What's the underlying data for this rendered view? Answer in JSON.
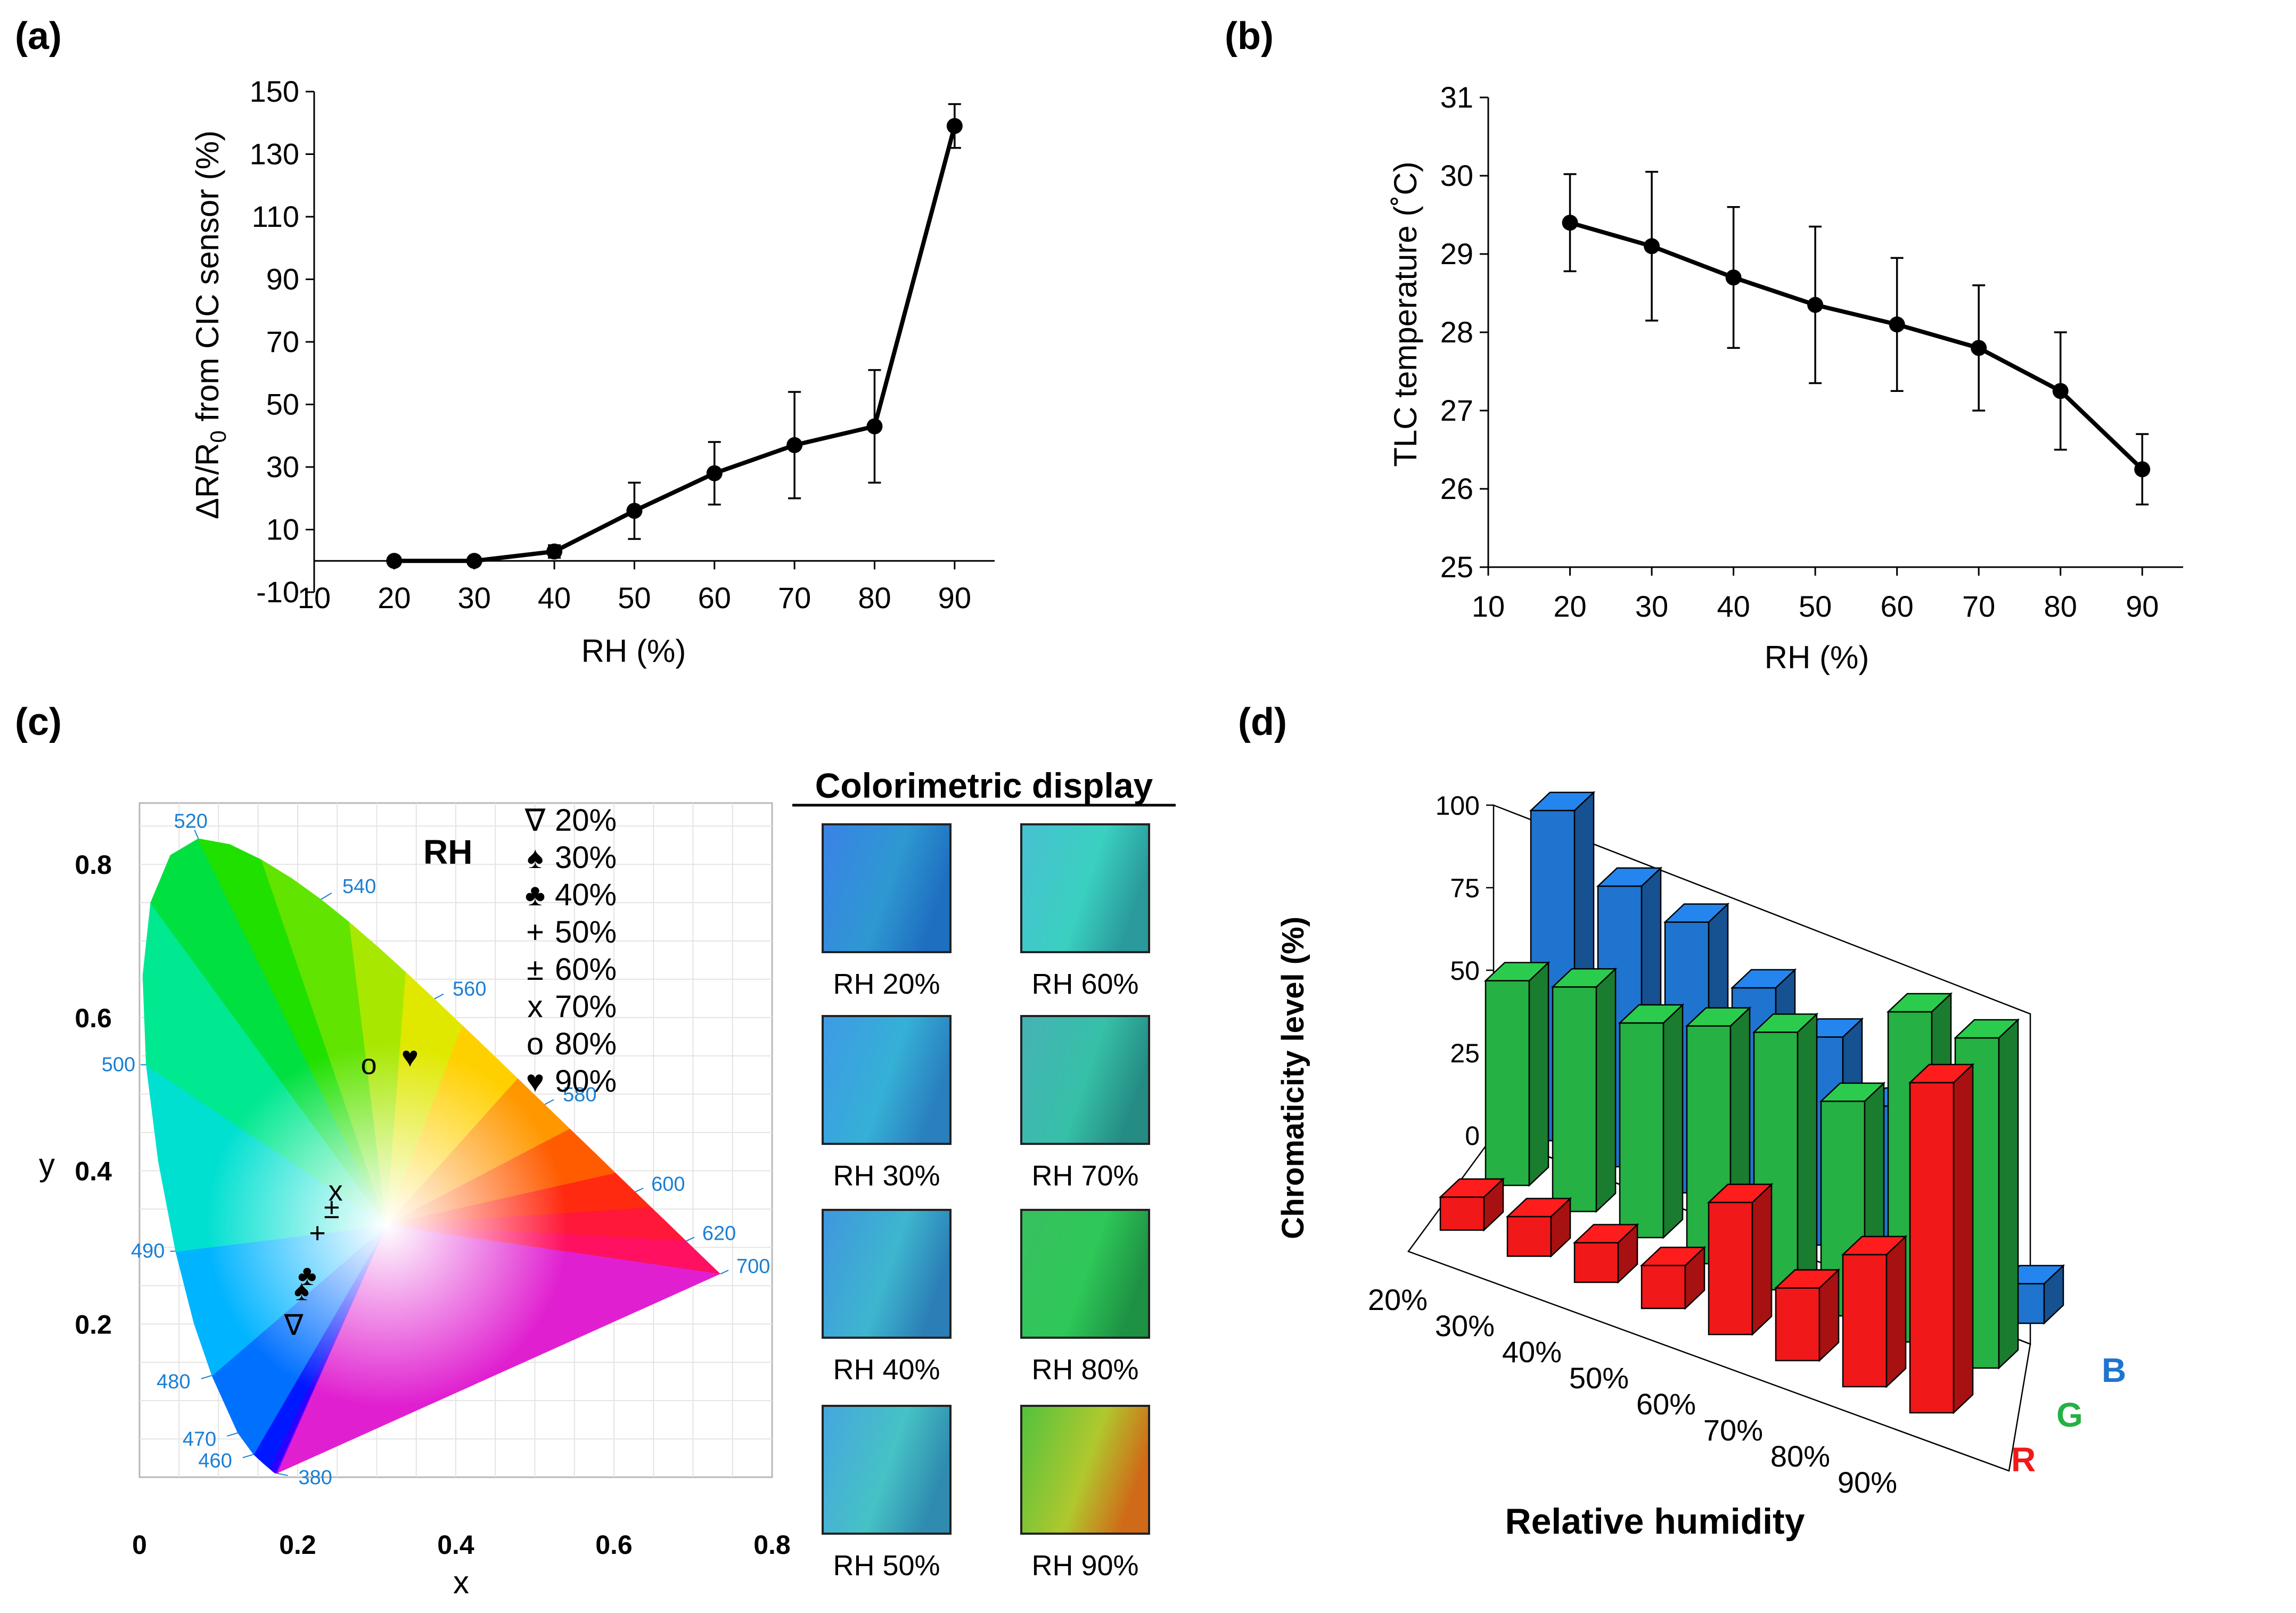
{
  "chart_data": [
    {
      "panel": "(a)",
      "type": "line",
      "xlabel": "RH (%)",
      "ylabel_parts": [
        "ΔR/R",
        "0",
        " from CIC sensor (%)"
      ],
      "xlim": [
        10,
        95
      ],
      "ylim": [
        -10,
        150
      ],
      "xticks": [
        10,
        20,
        30,
        40,
        50,
        60,
        70,
        80,
        90
      ],
      "yticks": [
        -10,
        10,
        30,
        50,
        70,
        90,
        110,
        130,
        150
      ],
      "x": [
        20,
        30,
        40,
        50,
        60,
        70,
        80,
        90
      ],
      "y": [
        0,
        0,
        3,
        16,
        28,
        37,
        43,
        139
      ],
      "err": [
        0,
        0,
        2,
        9,
        10,
        17,
        18,
        7
      ]
    },
    {
      "panel": "(b)",
      "type": "line",
      "xlabel": "RH (%)",
      "ylabel": "TLC temperature (˚C)",
      "xlim": [
        10,
        95
      ],
      "ylim": [
        25,
        31
      ],
      "xticks": [
        10,
        20,
        30,
        40,
        50,
        60,
        70,
        80,
        90
      ],
      "yticks": [
        25,
        26,
        27,
        28,
        29,
        30,
        31
      ],
      "x": [
        20,
        30,
        40,
        50,
        60,
        70,
        80,
        90
      ],
      "y": [
        29.4,
        29.1,
        28.7,
        28.35,
        28.1,
        27.8,
        27.25,
        26.25
      ],
      "err": [
        0.62,
        0.95,
        0.9,
        1.0,
        0.85,
        0.8,
        0.75,
        0.45
      ]
    },
    {
      "panel": "(c)",
      "type": "scatter",
      "title": "RH",
      "xlabel": "x",
      "ylabel": "y",
      "xlim": [
        0,
        0.8
      ],
      "ylim": [
        0,
        0.88
      ],
      "xticks": [
        0,
        0.2,
        0.4,
        0.6,
        0.8
      ],
      "xtick_labels": [
        "0",
        "0.2",
        "0.4",
        "0.6",
        "0.8"
      ],
      "yticks": [
        0.2,
        0.4,
        0.6,
        0.8
      ],
      "ytick_labels": [
        "0.2",
        "0.4",
        "0.6",
        "0.8"
      ],
      "wavelength_labels": [
        {
          "nm": "380",
          "x": 0.1741,
          "y": 0.005
        },
        {
          "nm": "460",
          "x": 0.144,
          "y": 0.0297
        },
        {
          "nm": "470",
          "x": 0.1241,
          "y": 0.0578
        },
        {
          "nm": "480",
          "x": 0.0913,
          "y": 0.1327
        },
        {
          "nm": "490",
          "x": 0.0454,
          "y": 0.295
        },
        {
          "nm": "500",
          "x": 0.0082,
          "y": 0.5384
        },
        {
          "nm": "520",
          "x": 0.0743,
          "y": 0.8338
        },
        {
          "nm": "540",
          "x": 0.2296,
          "y": 0.7543
        },
        {
          "nm": "560",
          "x": 0.3731,
          "y": 0.6245
        },
        {
          "nm": "580",
          "x": 0.5125,
          "y": 0.4866
        },
        {
          "nm": "600",
          "x": 0.627,
          "y": 0.3725
        },
        {
          "nm": "620",
          "x": 0.6915,
          "y": 0.3083
        },
        {
          "nm": "700",
          "x": 0.7347,
          "y": 0.2653
        }
      ],
      "legend": [
        {
          "symbol": "∇",
          "label": "20%"
        },
        {
          "symbol": "♠",
          "label": "30%"
        },
        {
          "symbol": "♣",
          "label": "40%"
        },
        {
          "symbol": "+",
          "label": "50%"
        },
        {
          "symbol": "±",
          "label": "60%"
        },
        {
          "symbol": "x",
          "label": "70%"
        },
        {
          "symbol": "o",
          "label": "80%"
        },
        {
          "symbol": "♥",
          "label": "90%"
        }
      ],
      "points": [
        {
          "rh": "20%",
          "x": 0.195,
          "y": 0.2
        },
        {
          "rh": "30%",
          "x": 0.205,
          "y": 0.245
        },
        {
          "rh": "40%",
          "x": 0.212,
          "y": 0.265
        },
        {
          "rh": "50%",
          "x": 0.225,
          "y": 0.32
        },
        {
          "rh": "60%",
          "x": 0.243,
          "y": 0.352
        },
        {
          "rh": "70%",
          "x": 0.248,
          "y": 0.375
        },
        {
          "rh": "80%",
          "x": 0.29,
          "y": 0.54
        },
        {
          "rh": "90%",
          "x": 0.342,
          "y": 0.55
        }
      ]
    },
    {
      "panel": "(d)",
      "type": "bar",
      "bar_style": "3d",
      "xlabel": "Relative humidity",
      "ylabel": "Chromaticity level (%)",
      "ylim": [
        0,
        100
      ],
      "yticks": [
        0,
        25,
        50,
        75,
        100
      ],
      "categories": [
        "20%",
        "30%",
        "40%",
        "50%",
        "60%",
        "70%",
        "80%",
        "90%"
      ],
      "series": [
        {
          "name": "B",
          "color": "#1f74cf",
          "values": [
            100,
            85,
            82,
            70,
            63,
            50,
            22,
            12
          ]
        },
        {
          "name": "G",
          "color": "#25b143",
          "values": [
            62,
            68,
            65,
            72,
            78,
            65,
            100,
            100
          ]
        },
        {
          "name": "R",
          "color": "#f01818",
          "values": [
            10,
            12,
            12,
            13,
            40,
            22,
            40,
            100
          ]
        }
      ]
    }
  ],
  "colorimetric_display": {
    "title": "Colorimetric display",
    "swatches": [
      {
        "label": "RH 20%",
        "colors": [
          "#3a82e6",
          "#2e98d2",
          "#1f6fc0"
        ]
      },
      {
        "label": "RH 30%",
        "colors": [
          "#3e9ae6",
          "#35b0d6",
          "#2a7fbf"
        ]
      },
      {
        "label": "RH 40%",
        "colors": [
          "#3f96df",
          "#3eb6cf",
          "#2b7fb6"
        ]
      },
      {
        "label": "RH 50%",
        "colors": [
          "#45a6df",
          "#46c2c5",
          "#2f8cb0"
        ]
      },
      {
        "label": "RH 60%",
        "colors": [
          "#48c0d2",
          "#3ad0c0",
          "#2a9a9c"
        ]
      },
      {
        "label": "RH 70%",
        "colors": [
          "#46b2b4",
          "#36c0a8",
          "#258c84"
        ]
      },
      {
        "label": "RH 80%",
        "colors": [
          "#38c060",
          "#2ec858",
          "#1e9244"
        ]
      },
      {
        "label": "RH 90%",
        "colors": [
          "#52c23e",
          "#b0c82e",
          "#d06a18"
        ]
      }
    ]
  }
}
